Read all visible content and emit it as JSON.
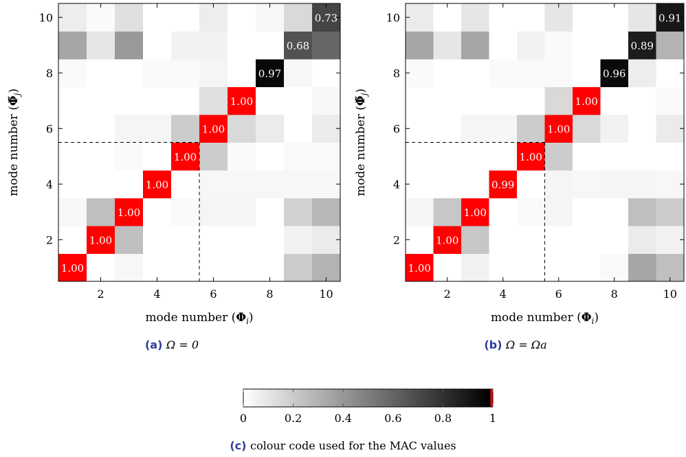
{
  "chart_data": [
    {
      "type": "heatmap",
      "panel": "a",
      "caption_letter": "(a)",
      "caption_text": "Ω = 0",
      "xlabel": "mode number (Φ_i)",
      "ylabel": "mode number (Φ̃_j)",
      "xlabel_main": "mode number (",
      "xlabel_sym": "Φ",
      "xlabel_sub": "i",
      "ylabel_main": "mode number (",
      "ylabel_sym": "Φ̃",
      "ylabel_sub": "j",
      "x_ticks": [
        "2",
        "4",
        "6",
        "8",
        "10"
      ],
      "y_ticks": [
        "2",
        "4",
        "6",
        "8",
        "10"
      ],
      "xlim": [
        0.5,
        10.5
      ],
      "ylim": [
        0.5,
        10.5
      ],
      "divider": 5.5,
      "grid": false,
      "values": [
        [
          1.0,
          0.0,
          0.03,
          0.0,
          0.0,
          0.0,
          0.0,
          0.0,
          0.2,
          0.3
        ],
        [
          0.0,
          1.0,
          0.25,
          0.0,
          0.0,
          0.0,
          0.0,
          0.0,
          0.05,
          0.08
        ],
        [
          0.03,
          0.25,
          1.0,
          0.0,
          0.02,
          0.04,
          0.04,
          0.0,
          0.18,
          0.28
        ],
        [
          0.0,
          0.0,
          0.0,
          1.0,
          0.0,
          0.03,
          0.03,
          0.03,
          0.03,
          0.03
        ],
        [
          0.0,
          0.0,
          0.02,
          0.0,
          1.0,
          0.2,
          0.02,
          0.0,
          0.02,
          0.02
        ],
        [
          0.0,
          0.0,
          0.04,
          0.04,
          0.2,
          1.0,
          0.15,
          0.08,
          0.0,
          0.08
        ],
        [
          0.0,
          0.0,
          0.0,
          0.0,
          0.0,
          0.12,
          1.0,
          0.0,
          0.0,
          0.03
        ],
        [
          0.02,
          0.0,
          0.0,
          0.02,
          0.02,
          0.04,
          0.0,
          0.97,
          0.03,
          0.0
        ],
        [
          0.35,
          0.1,
          0.4,
          0.0,
          0.05,
          0.05,
          0.0,
          0.0,
          0.68,
          0.6
        ],
        [
          0.07,
          0.02,
          0.12,
          0.0,
          0.0,
          0.07,
          0.0,
          0.03,
          0.15,
          0.73
        ]
      ],
      "labels": [
        {
          "x": 1,
          "y": 1,
          "text": "1.00"
        },
        {
          "x": 2,
          "y": 2,
          "text": "1.00"
        },
        {
          "x": 3,
          "y": 3,
          "text": "1.00"
        },
        {
          "x": 4,
          "y": 4,
          "text": "1.00"
        },
        {
          "x": 5,
          "y": 5,
          "text": "1.00"
        },
        {
          "x": 6,
          "y": 6,
          "text": "1.00"
        },
        {
          "x": 7,
          "y": 7,
          "text": "1.00"
        },
        {
          "x": 8,
          "y": 8,
          "text": "0.97"
        },
        {
          "x": 9,
          "y": 9,
          "text": "0.68"
        },
        {
          "x": 10,
          "y": 10,
          "text": "0.73"
        }
      ]
    },
    {
      "type": "heatmap",
      "panel": "b",
      "caption_letter": "(b)",
      "caption_text": "Ω = Ωa",
      "xlabel": "mode number (Φ_i)",
      "ylabel": "mode number (Φ̃_j)",
      "xlabel_main": "mode number (",
      "xlabel_sym": "Φ",
      "xlabel_sub": "i",
      "ylabel_main": "mode number (",
      "ylabel_sym": "Φ̃",
      "ylabel_sub": "j",
      "x_ticks": [
        "2",
        "4",
        "6",
        "8",
        "10"
      ],
      "y_ticks": [
        "2",
        "4",
        "6",
        "8",
        "10"
      ],
      "xlim": [
        0.5,
        10.5
      ],
      "ylim": [
        0.5,
        10.5
      ],
      "divider": 5.5,
      "grid": false,
      "values": [
        [
          1.0,
          0.0,
          0.05,
          0.0,
          0.0,
          0.0,
          0.0,
          0.02,
          0.35,
          0.25
        ],
        [
          0.0,
          1.0,
          0.22,
          0.0,
          0.0,
          0.0,
          0.0,
          0.0,
          0.08,
          0.05
        ],
        [
          0.04,
          0.22,
          1.0,
          0.0,
          0.02,
          0.04,
          0.0,
          0.0,
          0.25,
          0.2
        ],
        [
          0.0,
          0.0,
          0.0,
          0.99,
          0.0,
          0.04,
          0.03,
          0.04,
          0.04,
          0.03
        ],
        [
          0.0,
          0.0,
          0.0,
          0.0,
          1.0,
          0.2,
          0.0,
          0.0,
          0.0,
          0.0
        ],
        [
          0.0,
          0.0,
          0.04,
          0.04,
          0.2,
          1.0,
          0.15,
          0.05,
          0.0,
          0.08
        ],
        [
          0.0,
          0.0,
          0.0,
          0.0,
          0.0,
          0.15,
          1.0,
          0.0,
          0.0,
          0.02
        ],
        [
          0.02,
          0.0,
          0.0,
          0.02,
          0.02,
          0.02,
          0.0,
          0.96,
          0.07,
          0.0
        ],
        [
          0.35,
          0.1,
          0.35,
          0.0,
          0.05,
          0.02,
          0.0,
          0.0,
          0.89,
          0.3
        ],
        [
          0.08,
          0.0,
          0.1,
          0.0,
          0.0,
          0.1,
          0.0,
          0.0,
          0.1,
          0.91
        ]
      ],
      "labels": [
        {
          "x": 1,
          "y": 1,
          "text": "1.00"
        },
        {
          "x": 2,
          "y": 2,
          "text": "1.00"
        },
        {
          "x": 3,
          "y": 3,
          "text": "1.00"
        },
        {
          "x": 4,
          "y": 4,
          "text": "0.99"
        },
        {
          "x": 5,
          "y": 5,
          "text": "1.00"
        },
        {
          "x": 6,
          "y": 6,
          "text": "1.00"
        },
        {
          "x": 7,
          "y": 7,
          "text": "1.00"
        },
        {
          "x": 8,
          "y": 8,
          "text": "0.96"
        },
        {
          "x": 9,
          "y": 9,
          "text": "0.89"
        },
        {
          "x": 10,
          "y": 10,
          "text": "0.91"
        }
      ]
    }
  ],
  "colorbar": {
    "caption_letter": "(c)",
    "caption_text": "colour code used for the MAC values",
    "ticks": [
      "0",
      "0.2",
      "0.4",
      "0.6",
      "0.8",
      "1"
    ],
    "tick_values": [
      0,
      0.2,
      0.4,
      0.6,
      0.8,
      1
    ],
    "range": [
      0,
      1
    ],
    "highlight_threshold": 0.99,
    "colors": {
      "low": "#ffffff",
      "high": "#000000",
      "highlight": "#ff0000"
    }
  }
}
